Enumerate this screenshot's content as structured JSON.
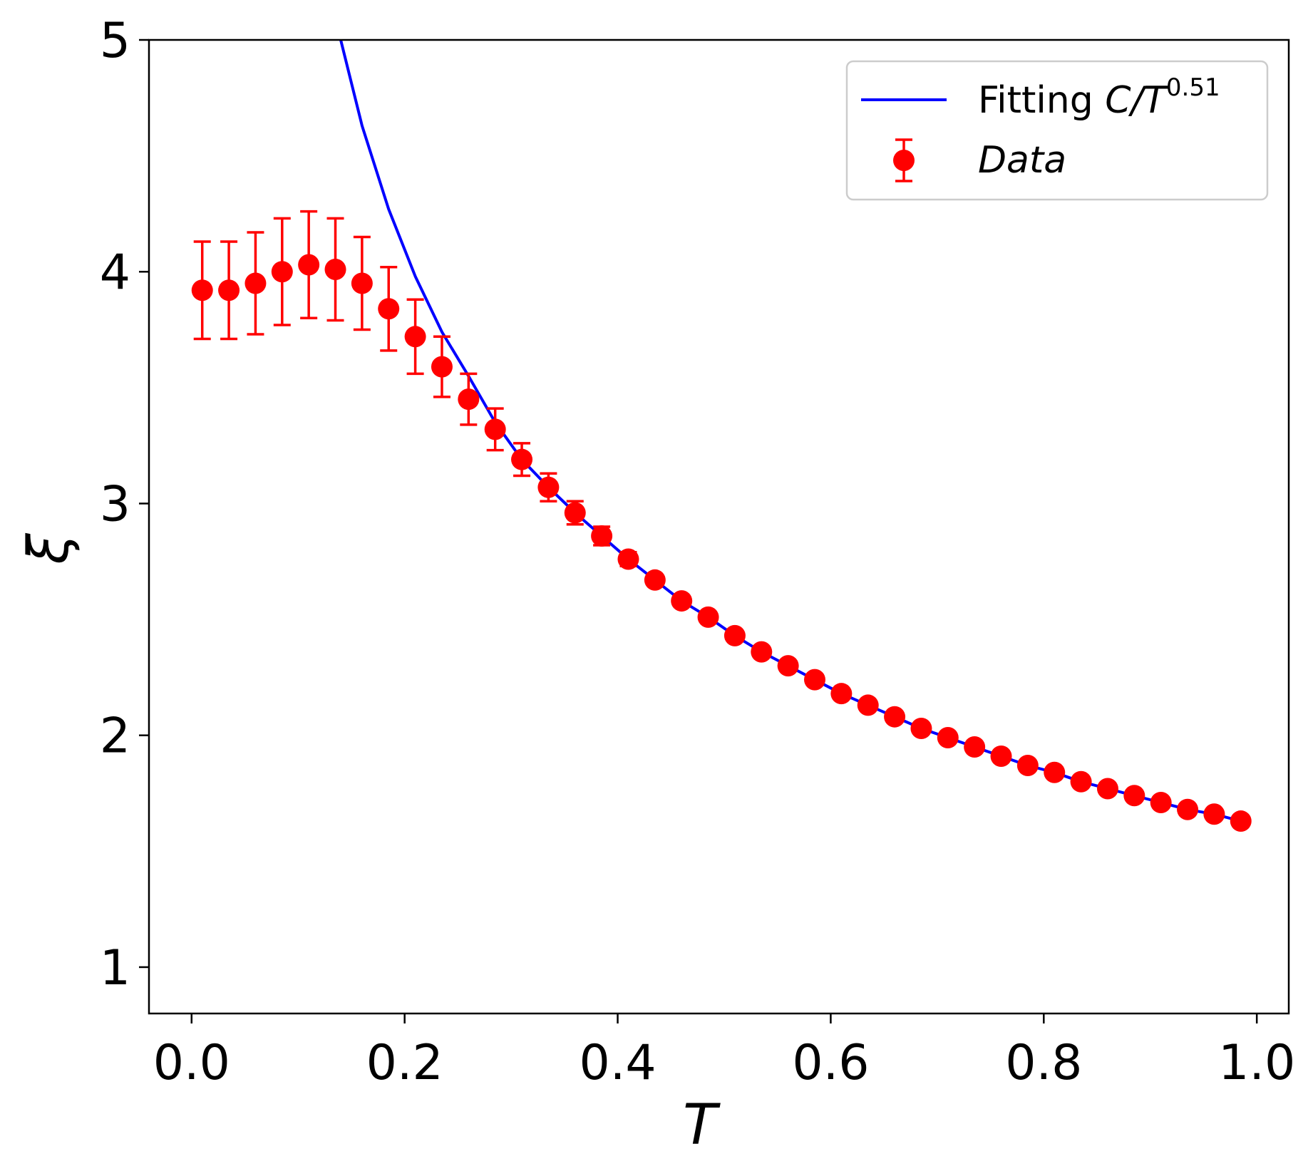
{
  "chart_data": {
    "type": "scatter",
    "title": "",
    "xlabel": "T",
    "ylabel": "ξ",
    "xlim": [
      -0.04,
      1.03
    ],
    "ylim": [
      0.8,
      5.0
    ],
    "xticks": [
      0.0,
      0.2,
      0.4,
      0.6,
      0.8,
      1.0
    ],
    "xtick_labels": [
      "0.0",
      "0.2",
      "0.4",
      "0.6",
      "0.8",
      "1.0"
    ],
    "yticks": [
      1,
      2,
      3,
      4,
      5
    ],
    "ytick_labels": [
      "1",
      "2",
      "3",
      "4",
      "5"
    ],
    "grid": false,
    "legend_position": "top-right",
    "series": [
      {
        "name": "Fitting C/T^0.51",
        "legend_prefix": "Fitting ",
        "legend_math": "C/T",
        "legend_exponent": "0.51",
        "kind": "line",
        "color": "#0000ff",
        "x": [
          0.14,
          0.16,
          0.185,
          0.21,
          0.235,
          0.26,
          0.285,
          0.31,
          0.335,
          0.36,
          0.385,
          0.41,
          0.435,
          0.46,
          0.485,
          0.51,
          0.535,
          0.56,
          0.585,
          0.61,
          0.635,
          0.66,
          0.685,
          0.71,
          0.735,
          0.76,
          0.785,
          0.81,
          0.835,
          0.86,
          0.885,
          0.91,
          0.935,
          0.96,
          0.985
        ],
        "y": [
          5.0,
          4.63,
          4.27,
          3.98,
          3.74,
          3.55,
          3.35,
          3.19,
          3.07,
          2.96,
          2.86,
          2.76,
          2.67,
          2.58,
          2.51,
          2.43,
          2.36,
          2.3,
          2.24,
          2.18,
          2.13,
          2.08,
          2.03,
          1.99,
          1.95,
          1.91,
          1.87,
          1.84,
          1.8,
          1.77,
          1.74,
          1.71,
          1.68,
          1.66,
          1.63
        ]
      },
      {
        "name": "Data",
        "kind": "errorbar",
        "color": "#ff0000",
        "x": [
          0.01,
          0.035,
          0.06,
          0.085,
          0.11,
          0.135,
          0.16,
          0.185,
          0.21,
          0.235,
          0.26,
          0.285,
          0.31,
          0.335,
          0.36,
          0.385,
          0.41,
          0.435,
          0.46,
          0.485,
          0.51,
          0.535,
          0.56,
          0.585,
          0.61,
          0.635,
          0.66,
          0.685,
          0.71,
          0.735,
          0.76,
          0.785,
          0.81,
          0.835,
          0.86,
          0.885,
          0.91,
          0.935,
          0.96,
          0.985
        ],
        "y": [
          3.92,
          3.92,
          3.95,
          4.0,
          4.03,
          4.01,
          3.95,
          3.84,
          3.72,
          3.59,
          3.45,
          3.32,
          3.19,
          3.07,
          2.96,
          2.86,
          2.76,
          2.67,
          2.58,
          2.51,
          2.43,
          2.36,
          2.3,
          2.24,
          2.18,
          2.13,
          2.08,
          2.03,
          1.99,
          1.95,
          1.91,
          1.87,
          1.84,
          1.8,
          1.77,
          1.74,
          1.71,
          1.68,
          1.66,
          1.63
        ],
        "yerr": [
          0.21,
          0.21,
          0.22,
          0.23,
          0.23,
          0.22,
          0.2,
          0.18,
          0.16,
          0.13,
          0.11,
          0.09,
          0.07,
          0.06,
          0.05,
          0.04,
          0.03,
          0.02,
          0.02,
          0.02,
          0.02,
          0.01,
          0.01,
          0.01,
          0.01,
          0.01,
          0.01,
          0.01,
          0.01,
          0.01,
          0.01,
          0.01,
          0.01,
          0.01,
          0.01,
          0.01,
          0.01,
          0.01,
          0.01,
          0.01
        ]
      }
    ]
  }
}
